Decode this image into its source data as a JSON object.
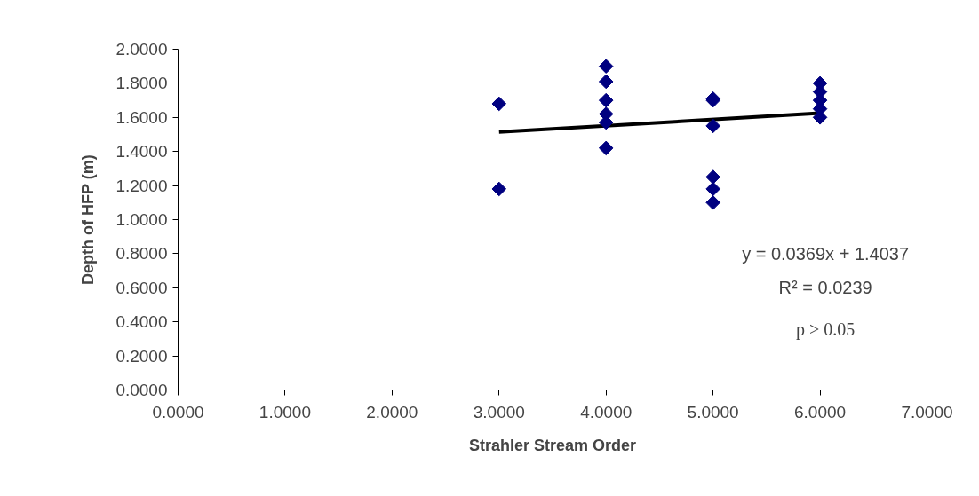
{
  "chart_data": {
    "type": "scatter",
    "xlabel": "Strahler Stream Order",
    "ylabel": "Depth of HFP (m)",
    "grid": false,
    "xlim": [
      0,
      7
    ],
    "ylim": [
      0,
      2
    ],
    "xticks": [
      {
        "value": 0,
        "label": "0.0000"
      },
      {
        "value": 1,
        "label": "1.0000"
      },
      {
        "value": 2,
        "label": "2.0000"
      },
      {
        "value": 3,
        "label": "3.0000"
      },
      {
        "value": 4,
        "label": "4.0000"
      },
      {
        "value": 5,
        "label": "5.0000"
      },
      {
        "value": 6,
        "label": "6.0000"
      },
      {
        "value": 7,
        "label": "7.0000"
      }
    ],
    "yticks": [
      {
        "value": 0,
        "label": "0.0000"
      },
      {
        "value": 0.2,
        "label": "0.2000"
      },
      {
        "value": 0.4,
        "label": "0.4000"
      },
      {
        "value": 0.6,
        "label": "0.6000"
      },
      {
        "value": 0.8,
        "label": "0.8000"
      },
      {
        "value": 1.0,
        "label": "1.0000"
      },
      {
        "value": 1.2,
        "label": "1.2000"
      },
      {
        "value": 1.4,
        "label": "1.4000"
      },
      {
        "value": 1.6,
        "label": "1.6000"
      },
      {
        "value": 1.8,
        "label": "1.8000"
      },
      {
        "value": 2.0,
        "label": "2.0000"
      }
    ],
    "series": [
      {
        "marker": "diamond",
        "color": "#000080",
        "x": [
          3,
          3,
          4,
          4,
          4,
          4,
          4,
          4,
          5,
          5,
          5,
          5,
          5,
          5,
          6,
          6,
          6,
          6,
          6
        ],
        "values": [
          1.68,
          1.18,
          1.9,
          1.81,
          1.7,
          1.62,
          1.57,
          1.42,
          1.71,
          1.7,
          1.55,
          1.25,
          1.18,
          1.1,
          1.8,
          1.75,
          1.7,
          1.65,
          1.6
        ]
      },
      {
        "type": "line",
        "marker": "none",
        "color": "#000000",
        "x": [
          3,
          6
        ],
        "values": [
          1.514,
          1.625
        ]
      }
    ],
    "annotations": [
      "y = 0.0369x + 1.4037",
      "R² = 0.0239",
      "p > 0.05"
    ]
  }
}
